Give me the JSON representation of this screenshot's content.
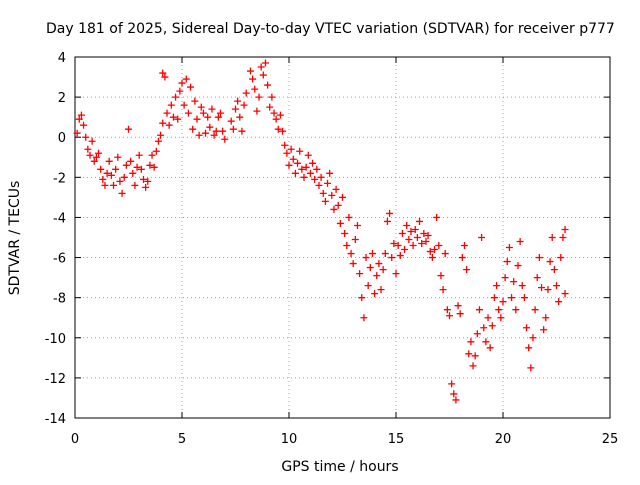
{
  "chart_data": {
    "type": "scatter",
    "title": "Day 181 of 2025, Sidereal Day-to-day VTEC variation (SDTVAR) for receiver p777",
    "xlabel": "GPS time / hours",
    "ylabel": "SDTVAR / TECUs",
    "xlim": [
      0,
      25
    ],
    "ylim": [
      -14,
      4
    ],
    "xticks": [
      0,
      5,
      10,
      15,
      20,
      25
    ],
    "yticks": [
      -14,
      -12,
      -10,
      -8,
      -6,
      -4,
      -2,
      0,
      2,
      4
    ],
    "grid": true,
    "marker": "+",
    "color": "#ff0000",
    "series": [
      {
        "name": "SDTVAR",
        "points": [
          [
            0.1,
            0.2
          ],
          [
            0.2,
            0.9
          ],
          [
            0.3,
            1.1
          ],
          [
            0.4,
            0.6
          ],
          [
            0.5,
            0.0
          ],
          [
            0.6,
            -0.6
          ],
          [
            0.7,
            -0.9
          ],
          [
            0.8,
            -0.2
          ],
          [
            0.9,
            -1.2
          ],
          [
            1.0,
            -1.0
          ],
          [
            1.1,
            -0.8
          ],
          [
            1.2,
            -1.6
          ],
          [
            1.3,
            -2.1
          ],
          [
            1.4,
            -2.4
          ],
          [
            1.5,
            -1.8
          ],
          [
            1.6,
            -1.2
          ],
          [
            1.7,
            -1.9
          ],
          [
            1.8,
            -2.4
          ],
          [
            1.9,
            -1.6
          ],
          [
            2.0,
            -1.0
          ],
          [
            2.1,
            -2.2
          ],
          [
            2.2,
            -2.8
          ],
          [
            2.3,
            -2.0
          ],
          [
            2.4,
            -1.4
          ],
          [
            2.5,
            0.4
          ],
          [
            2.6,
            -1.2
          ],
          [
            2.7,
            -1.8
          ],
          [
            2.8,
            -2.4
          ],
          [
            2.9,
            -1.5
          ],
          [
            3.0,
            -0.9
          ],
          [
            3.1,
            -1.6
          ],
          [
            3.2,
            -2.1
          ],
          [
            3.3,
            -2.5
          ],
          [
            3.4,
            -2.2
          ],
          [
            3.5,
            -1.4
          ],
          [
            3.6,
            -0.9
          ],
          [
            3.7,
            -1.5
          ],
          [
            3.8,
            -0.7
          ],
          [
            3.9,
            -0.2
          ],
          [
            4.0,
            0.1
          ],
          [
            4.1,
            0.7
          ],
          [
            4.1,
            3.2
          ],
          [
            4.2,
            3.0
          ],
          [
            4.3,
            1.2
          ],
          [
            4.4,
            0.6
          ],
          [
            4.5,
            1.6
          ],
          [
            4.6,
            1.0
          ],
          [
            4.7,
            2.0
          ],
          [
            4.8,
            0.9
          ],
          [
            4.9,
            2.3
          ],
          [
            5.0,
            2.7
          ],
          [
            5.1,
            1.6
          ],
          [
            5.2,
            2.9
          ],
          [
            5.3,
            1.2
          ],
          [
            5.4,
            2.5
          ],
          [
            5.5,
            0.4
          ],
          [
            5.6,
            1.8
          ],
          [
            5.7,
            0.9
          ],
          [
            5.8,
            0.1
          ],
          [
            5.9,
            1.5
          ],
          [
            6.0,
            1.2
          ],
          [
            6.1,
            0.2
          ],
          [
            6.2,
            1.0
          ],
          [
            6.3,
            0.5
          ],
          [
            6.4,
            1.4
          ],
          [
            6.5,
            0.1
          ],
          [
            6.6,
            0.3
          ],
          [
            6.7,
            1.0
          ],
          [
            6.8,
            1.2
          ],
          [
            6.9,
            0.3
          ],
          [
            7.0,
            -0.1
          ],
          [
            7.3,
            0.8
          ],
          [
            7.4,
            0.4
          ],
          [
            7.5,
            1.4
          ],
          [
            7.6,
            1.8
          ],
          [
            7.7,
            1.0
          ],
          [
            7.8,
            0.3
          ],
          [
            7.9,
            1.6
          ],
          [
            8.0,
            2.2
          ],
          [
            8.2,
            3.3
          ],
          [
            8.3,
            2.9
          ],
          [
            8.4,
            2.4
          ],
          [
            8.5,
            1.3
          ],
          [
            8.6,
            2.0
          ],
          [
            8.7,
            3.5
          ],
          [
            8.8,
            3.1
          ],
          [
            8.9,
            3.7
          ],
          [
            9.0,
            2.6
          ],
          [
            9.1,
            1.5
          ],
          [
            9.2,
            2.0
          ],
          [
            9.3,
            1.2
          ],
          [
            9.4,
            0.9
          ],
          [
            9.5,
            0.4
          ],
          [
            9.6,
            1.1
          ],
          [
            9.7,
            0.3
          ],
          [
            9.8,
            -0.4
          ],
          [
            9.9,
            -0.8
          ],
          [
            10.0,
            -1.4
          ],
          [
            10.1,
            -0.6
          ],
          [
            10.2,
            -1.1
          ],
          [
            10.3,
            -1.8
          ],
          [
            10.4,
            -1.3
          ],
          [
            10.5,
            -0.7
          ],
          [
            10.6,
            -1.6
          ],
          [
            10.7,
            -2.0
          ],
          [
            10.8,
            -1.5
          ],
          [
            10.9,
            -0.9
          ],
          [
            11.0,
            -1.8
          ],
          [
            11.1,
            -1.3
          ],
          [
            11.2,
            -2.1
          ],
          [
            11.3,
            -1.6
          ],
          [
            11.4,
            -2.4
          ],
          [
            11.5,
            -2.0
          ],
          [
            11.6,
            -2.8
          ],
          [
            11.7,
            -3.2
          ],
          [
            11.8,
            -2.3
          ],
          [
            11.9,
            -1.8
          ],
          [
            12.0,
            -2.9
          ],
          [
            12.1,
            -3.6
          ],
          [
            12.2,
            -2.6
          ],
          [
            12.3,
            -3.4
          ],
          [
            12.4,
            -4.3
          ],
          [
            12.5,
            -3.0
          ],
          [
            12.6,
            -4.8
          ],
          [
            12.7,
            -5.4
          ],
          [
            12.8,
            -4.0
          ],
          [
            12.9,
            -5.8
          ],
          [
            13.0,
            -6.3
          ],
          [
            13.1,
            -5.1
          ],
          [
            13.2,
            -4.4
          ],
          [
            13.3,
            -6.8
          ],
          [
            13.4,
            -8.0
          ],
          [
            13.5,
            -9.0
          ],
          [
            13.6,
            -6.0
          ],
          [
            13.7,
            -7.4
          ],
          [
            13.8,
            -6.5
          ],
          [
            13.9,
            -5.8
          ],
          [
            14.0,
            -7.8
          ],
          [
            14.1,
            -6.9
          ],
          [
            14.2,
            -6.3
          ],
          [
            14.3,
            -7.6
          ],
          [
            14.4,
            -6.6
          ],
          [
            14.5,
            -5.8
          ],
          [
            14.6,
            -4.2
          ],
          [
            14.7,
            -3.8
          ],
          [
            14.8,
            -6.0
          ],
          [
            14.9,
            -5.3
          ],
          [
            15.0,
            -6.8
          ],
          [
            15.1,
            -5.4
          ],
          [
            15.2,
            -5.9
          ],
          [
            15.3,
            -4.8
          ],
          [
            15.4,
            -5.6
          ],
          [
            15.5,
            -4.4
          ],
          [
            15.6,
            -5.1
          ],
          [
            15.7,
            -4.7
          ],
          [
            15.8,
            -5.4
          ],
          [
            15.9,
            -4.6
          ],
          [
            16.0,
            -5.0
          ],
          [
            16.1,
            -4.2
          ],
          [
            16.2,
            -5.3
          ],
          [
            16.3,
            -4.8
          ],
          [
            16.4,
            -5.2
          ],
          [
            16.5,
            -4.9
          ],
          [
            16.6,
            -5.7
          ],
          [
            16.7,
            -6.0
          ],
          [
            16.8,
            -5.6
          ],
          [
            16.9,
            -4.0
          ],
          [
            17.0,
            -5.4
          ],
          [
            17.1,
            -6.9
          ],
          [
            17.2,
            -7.6
          ],
          [
            17.3,
            -5.8
          ],
          [
            17.4,
            -8.6
          ],
          [
            17.5,
            -8.9
          ],
          [
            17.6,
            -12.3
          ],
          [
            17.7,
            -12.8
          ],
          [
            17.8,
            -13.1
          ],
          [
            17.9,
            -8.4
          ],
          [
            18.0,
            -8.8
          ],
          [
            18.1,
            -6.0
          ],
          [
            18.2,
            -5.4
          ],
          [
            18.3,
            -6.6
          ],
          [
            18.4,
            -10.8
          ],
          [
            18.5,
            -10.2
          ],
          [
            18.6,
            -11.4
          ],
          [
            18.7,
            -10.9
          ],
          [
            18.8,
            -9.8
          ],
          [
            18.9,
            -8.6
          ],
          [
            19.0,
            -5.0
          ],
          [
            19.1,
            -9.5
          ],
          [
            19.2,
            -10.2
          ],
          [
            19.3,
            -9.0
          ],
          [
            19.4,
            -10.5
          ],
          [
            19.5,
            -9.4
          ],
          [
            19.6,
            -8.0
          ],
          [
            19.7,
            -7.4
          ],
          [
            19.8,
            -8.6
          ],
          [
            19.9,
            -9.0
          ],
          [
            20.0,
            -8.2
          ],
          [
            20.1,
            -7.0
          ],
          [
            20.2,
            -6.2
          ],
          [
            20.3,
            -5.5
          ],
          [
            20.4,
            -8.0
          ],
          [
            20.5,
            -7.2
          ],
          [
            20.6,
            -8.6
          ],
          [
            20.7,
            -6.4
          ],
          [
            20.8,
            -5.2
          ],
          [
            20.9,
            -7.4
          ],
          [
            21.0,
            -8.0
          ],
          [
            21.1,
            -9.5
          ],
          [
            21.2,
            -10.5
          ],
          [
            21.3,
            -11.5
          ],
          [
            21.4,
            -10.0
          ],
          [
            21.5,
            -8.6
          ],
          [
            21.6,
            -7.0
          ],
          [
            21.7,
            -6.0
          ],
          [
            21.8,
            -7.5
          ],
          [
            21.9,
            -9.6
          ],
          [
            22.0,
            -9.0
          ],
          [
            22.1,
            -7.6
          ],
          [
            22.2,
            -6.2
          ],
          [
            22.3,
            -5.0
          ],
          [
            22.4,
            -6.6
          ],
          [
            22.5,
            -7.4
          ],
          [
            22.6,
            -8.2
          ],
          [
            22.7,
            -6.0
          ],
          [
            22.8,
            -5.0
          ],
          [
            22.9,
            -4.6
          ],
          [
            22.9,
            -7.8
          ]
        ]
      }
    ]
  }
}
